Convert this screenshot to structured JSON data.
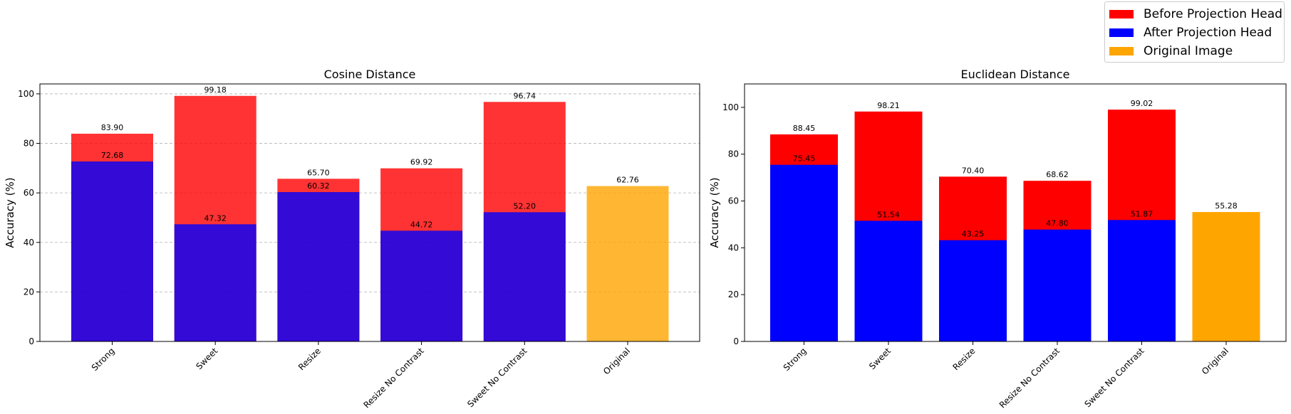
{
  "legend": [
    {
      "label": "Before Projection Head",
      "color": "#ff0000"
    },
    {
      "label": "After Projection Head",
      "color": "#0000ff"
    },
    {
      "label": "Original Image",
      "color": "#ffa500"
    }
  ],
  "chart_data": [
    {
      "type": "bar",
      "title": "Cosine Distance",
      "xlabel": "",
      "ylabel": "Accuracy (%)",
      "ylim": [
        0,
        104
      ],
      "yticks": [
        0,
        20,
        40,
        60,
        80,
        100
      ],
      "grid": true,
      "bar_alpha": 0.8,
      "categories": [
        "Strong",
        "Sweet",
        "Resize",
        "Resize No Contrast",
        "Sweet No Contrast",
        "Original"
      ],
      "series": [
        {
          "name": "Before Projection Head",
          "color": "#ff0000",
          "values": [
            83.9,
            99.18,
            65.7,
            69.92,
            96.74,
            null
          ]
        },
        {
          "name": "After Projection Head",
          "color": "#0000ff",
          "values": [
            72.68,
            47.32,
            60.32,
            44.72,
            52.2,
            null
          ]
        },
        {
          "name": "Original Image",
          "color": "#ffa500",
          "values": [
            null,
            null,
            null,
            null,
            null,
            62.76
          ]
        }
      ]
    },
    {
      "type": "bar",
      "title": "Euclidean Distance",
      "xlabel": "",
      "ylabel": "Accuracy (%)",
      "ylim": [
        0,
        110
      ],
      "yticks": [
        0,
        20,
        40,
        60,
        80,
        100
      ],
      "grid": false,
      "bar_alpha": 1.0,
      "categories": [
        "Strong",
        "Sweet",
        "Resize",
        "Resize No Contrast",
        "Sweet No Contrast",
        "Original"
      ],
      "series": [
        {
          "name": "Before Projection Head",
          "color": "#ff0000",
          "values": [
            88.45,
            98.21,
            70.4,
            68.62,
            99.02,
            null
          ]
        },
        {
          "name": "After Projection Head",
          "color": "#0000ff",
          "values": [
            75.45,
            51.54,
            43.25,
            47.8,
            51.87,
            null
          ]
        },
        {
          "name": "Original Image",
          "color": "#ffa500",
          "values": [
            null,
            null,
            null,
            null,
            null,
            55.28
          ]
        }
      ]
    }
  ]
}
